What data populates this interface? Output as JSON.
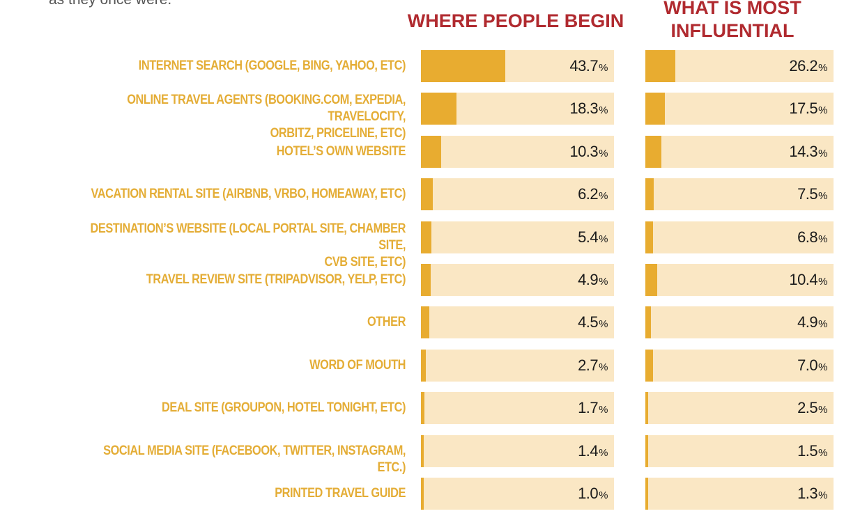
{
  "intro_fragment": "as they once were.",
  "chart_data": {
    "type": "bar",
    "orientation": "horizontal",
    "categories": [
      "INTERNET SEARCH (GOOGLE, BING, YAHOO, ETC)",
      "ONLINE TRAVEL AGENTS (BOOKING.COM, EXPEDIA, TRAVELOCITY,\nORBITZ, PRICELINE, ETC)",
      "HOTEL’S OWN WEBSITE",
      "VACATION RENTAL SITE (AIRBNB, VRBO, HOMEAWAY, ETC)",
      "DESTINATION’S WEBSITE (LOCAL PORTAL SITE, CHAMBER SITE,\nCVB SITE, ETC)",
      "TRAVEL REVIEW SITE (TRIPADVISOR, YELP, ETC)",
      "OTHER",
      "WORD OF MOUTH",
      "DEAL SITE (GROUPON, HOTEL TONIGHT, ETC)",
      "SOCIAL MEDIA SITE (FACEBOOK, TWITTER, INSTAGRAM, ETC.)",
      "PRINTED TRAVEL GUIDE"
    ],
    "series": [
      {
        "name": "WHERE PEOPLE BEGIN",
        "values": [
          43.7,
          18.3,
          10.3,
          6.2,
          5.4,
          4.9,
          4.5,
          2.7,
          1.7,
          1.4,
          1.0
        ]
      },
      {
        "name": "WHAT IS MOST INFLUENTIAL",
        "values": [
          26.2,
          17.5,
          14.3,
          7.5,
          6.8,
          10.4,
          4.9,
          7.0,
          2.5,
          1.5,
          1.3
        ]
      }
    ],
    "value_labels": [
      [
        "43.7",
        "18.3",
        "10.3",
        "6.2",
        "5.4",
        "4.9",
        "4.5",
        "2.7",
        "1.7",
        "1.4",
        "1.0"
      ],
      [
        "26.2",
        "17.5",
        "14.3",
        "7.5",
        "6.8",
        "10.4",
        "4.9",
        "7.0",
        "2.5",
        "1.5",
        "1.3"
      ]
    ],
    "unit": "%",
    "xlim": [
      0,
      100
    ],
    "colors": {
      "fill": "#e8ac30",
      "track": "#fae7c4",
      "label": "#e4ad36",
      "header": "#b02a2f",
      "value_text": "#1a1a1a"
    }
  }
}
